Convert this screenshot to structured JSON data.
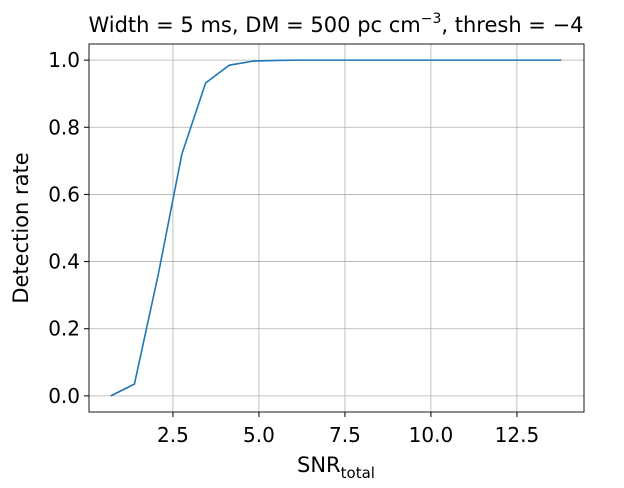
{
  "chart_data": {
    "type": "line",
    "title": {
      "main": "Width = 5 ms, DM = 500 pc cm",
      "sup": "−3",
      "end": ", thresh = −4"
    },
    "x_label": {
      "main": "SNR",
      "sub": "total"
    },
    "y_label": "Detection rate",
    "x": [
      0.69,
      1.38,
      2.07,
      2.76,
      3.45,
      4.14,
      4.83,
      5.52,
      6.21,
      6.9,
      7.59,
      8.28,
      8.97,
      9.66,
      10.34,
      11.03,
      11.72,
      12.41,
      13.1,
      13.79
    ],
    "series": [
      {
        "color": "#1f77b4",
        "values": [
          0,
          0.035,
          0.36,
          0.72,
          0.932,
          0.985,
          0.997,
          0.999,
          1,
          1,
          1,
          1,
          1,
          1,
          1,
          1,
          1,
          1,
          1,
          1
        ]
      }
    ],
    "xlim": [
      0.06,
      14.45
    ],
    "ylim": [
      -0.048,
      1.048
    ],
    "xticks": [
      {
        "value": 2.5,
        "label": "2.5"
      },
      {
        "value": 5,
        "label": "5.0"
      },
      {
        "value": 7.5,
        "label": "7.5"
      },
      {
        "value": 10,
        "label": "10.0"
      },
      {
        "value": 12.5,
        "label": "12.5"
      }
    ],
    "yticks": [
      {
        "value": 0,
        "label": "0.0"
      },
      {
        "value": 0.2,
        "label": "0.2"
      },
      {
        "value": 0.4,
        "label": "0.4"
      },
      {
        "value": 0.6,
        "label": "0.6"
      },
      {
        "value": 0.8,
        "label": "0.8"
      },
      {
        "value": 1,
        "label": "1.0"
      }
    ],
    "grid": true
  }
}
